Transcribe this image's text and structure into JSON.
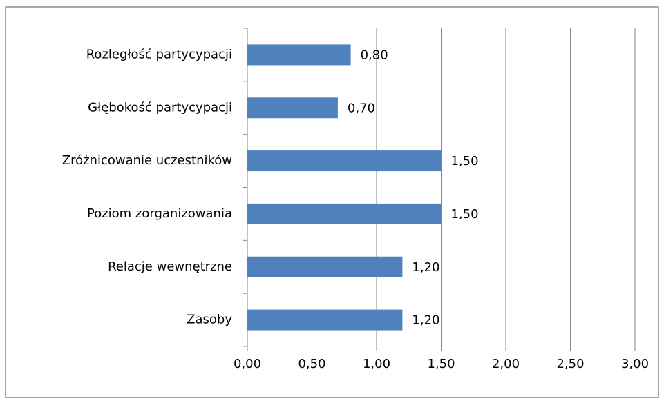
{
  "chart_data": {
    "type": "bar",
    "orientation": "horizontal",
    "categories": [
      "Rozległość partycypacji",
      "Głębokość partycypacji",
      "Zróżnicowanie uczestników",
      "Poziom zorganizowania",
      "Relacje wewnętrzne",
      "Zasoby"
    ],
    "values": [
      0.8,
      0.7,
      1.5,
      1.5,
      1.2,
      1.2
    ],
    "value_labels": [
      "0,80",
      "0,70",
      "1,50",
      "1,50",
      "1,20",
      "1,20"
    ],
    "color": "#4f81bd",
    "xlim": [
      0,
      3
    ],
    "xticks": [
      {
        "value": 0,
        "label": "0,00"
      },
      {
        "value": 0.5,
        "label": "0,50"
      },
      {
        "value": 1,
        "label": "1,00"
      },
      {
        "value": 1.5,
        "label": "1,50"
      },
      {
        "value": 2,
        "label": "2,00"
      },
      {
        "value": 2.5,
        "label": "2,50"
      },
      {
        "value": 3,
        "label": "3,00"
      }
    ],
    "grid": true
  }
}
